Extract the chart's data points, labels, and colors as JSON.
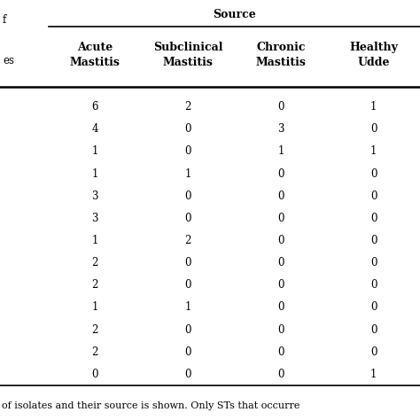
{
  "col_headers": [
    "Acute\nMastitis",
    "Subclinical\nMastitis",
    "Chronic\nMastitis",
    "Healthy\nUdde"
  ],
  "col_header_group": "Source",
  "left_partial_top": "f",
  "left_partial_bot": "es",
  "rows": [
    [
      6,
      2,
      0,
      1
    ],
    [
      4,
      0,
      3,
      0
    ],
    [
      1,
      0,
      1,
      1
    ],
    [
      1,
      1,
      0,
      0
    ],
    [
      3,
      0,
      0,
      0
    ],
    [
      3,
      0,
      0,
      0
    ],
    [
      1,
      2,
      0,
      0
    ],
    [
      2,
      0,
      0,
      0
    ],
    [
      2,
      0,
      0,
      0
    ],
    [
      1,
      1,
      0,
      0
    ],
    [
      2,
      0,
      0,
      0
    ],
    [
      2,
      0,
      0,
      0
    ],
    [
      0,
      0,
      0,
      1
    ]
  ],
  "footer_text": "of isolates and their source is shown. Only STs that occurre",
  "bg_color": "#ffffff",
  "text_color": "#000000",
  "font_size": 8.5,
  "header_font_size": 9.0
}
